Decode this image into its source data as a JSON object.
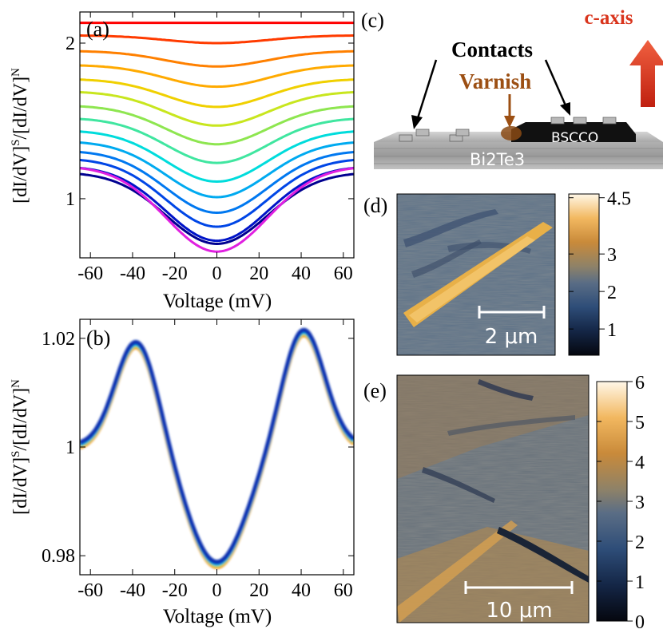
{
  "figure": {
    "panels": {
      "a": {
        "label": "(a)"
      },
      "b": {
        "label": "(b)"
      },
      "c": {
        "label": "(c)",
        "contacts": "Contacts",
        "varnish": "Varnish",
        "c_axis": "c-axis",
        "bscco": "BSCCO",
        "substrate": "Bi2Te3"
      },
      "d": {
        "label": "(d)",
        "scalebar": "2 μm"
      },
      "e": {
        "label": "(e)",
        "scalebar": "10 μm"
      }
    },
    "colors": {
      "arrow_red": "#d9341c",
      "varnish_brown": "#9c4f13",
      "contacts_black": "#000000"
    }
  },
  "chart_data": [
    {
      "panel": "a",
      "type": "line",
      "xlabel": "Voltage (mV)",
      "ylabel": "[dI/dV]S/[dI/dV]N",
      "ylabel_main": "[dI/dV]",
      "ylabel_sup1": "S",
      "ylabel_mid": "/[dI/dV]",
      "ylabel_sup2": "N",
      "xlim": [
        -65,
        65
      ],
      "ylim": [
        0.62,
        2.2
      ],
      "xticks": [
        -60,
        -40,
        -20,
        0,
        20,
        40,
        60
      ],
      "xtick_labels": [
        "-60",
        "-40",
        "-20",
        "0",
        "20",
        "40",
        "60"
      ],
      "yticks": [
        1,
        2
      ],
      "ytick_labels": [
        "1",
        "2"
      ],
      "series": [
        {
          "name": "s0",
          "color": "#ff0000",
          "offset": 2.13,
          "depth": 0.0
        },
        {
          "name": "s1",
          "color": "#ff3b00",
          "offset": 2.05,
          "depth": 0.05
        },
        {
          "name": "s2",
          "color": "#ff8000",
          "offset": 1.95,
          "depth": 0.1
        },
        {
          "name": "s3",
          "color": "#ffaa00",
          "offset": 1.86,
          "depth": 0.14
        },
        {
          "name": "s4",
          "color": "#f0d000",
          "offset": 1.77,
          "depth": 0.18
        },
        {
          "name": "s5",
          "color": "#c8e61e",
          "offset": 1.69,
          "depth": 0.22
        },
        {
          "name": "s6",
          "color": "#8ee650",
          "offset": 1.6,
          "depth": 0.25
        },
        {
          "name": "s7",
          "color": "#40e6a0",
          "offset": 1.52,
          "depth": 0.29
        },
        {
          "name": "s8",
          "color": "#00dcdc",
          "offset": 1.44,
          "depth": 0.33
        },
        {
          "name": "s9",
          "color": "#00aaf0",
          "offset": 1.37,
          "depth": 0.36
        },
        {
          "name": "s10",
          "color": "#0078f0",
          "offset": 1.31,
          "depth": 0.4
        },
        {
          "name": "s11",
          "color": "#0046e6",
          "offset": 1.26,
          "depth": 0.44
        },
        {
          "name": "s12",
          "color": "#0014c8",
          "offset": 1.21,
          "depth": 0.48
        },
        {
          "name": "s13",
          "color": "#000090",
          "offset": 1.17,
          "depth": 0.46
        },
        {
          "name": "s14",
          "color": "#e020e0",
          "offset": 1.21,
          "depth": 0.55
        }
      ]
    },
    {
      "panel": "b",
      "type": "line",
      "xlabel": "Voltage (mV)",
      "ylabel": "[dI/dV]S/[dI/dV]N",
      "ylabel_main": "[dI/dV]",
      "ylabel_sup1": "S",
      "ylabel_mid": "/[dI/dV]",
      "ylabel_sup2": "N",
      "xlim": [
        -65,
        65
      ],
      "ylim": [
        0.9765,
        1.0235
      ],
      "xticks": [
        -60,
        -40,
        -20,
        0,
        20,
        40,
        60
      ],
      "xtick_labels": [
        "-60",
        "-40",
        "-20",
        "0",
        "20",
        "40",
        "60"
      ],
      "yticks": [
        0.98,
        1.0,
        1.02
      ],
      "ytick_labels": [
        "0.98",
        "1",
        "1.02"
      ],
      "series_colors": [
        "#e67800",
        "#ff9a00",
        "#f0c000",
        "#b8e040",
        "#40d8a0",
        "#00c0e0",
        "#0090f0",
        "#0050d8",
        "#1030b0"
      ]
    },
    {
      "panel": "d",
      "type": "heatmap",
      "colorbar_ticks": [
        1,
        2,
        3,
        4.5
      ],
      "colorbar_labels": [
        "1",
        "2",
        "3",
        "4.5"
      ],
      "colorbar_range": [
        0.3,
        4.6
      ]
    },
    {
      "panel": "e",
      "type": "heatmap",
      "colorbar_ticks": [
        0,
        1,
        2,
        3,
        4,
        5,
        6
      ],
      "colorbar_labels": [
        "0",
        "1",
        "2",
        "3",
        "4",
        "5",
        "6"
      ],
      "colorbar_range": [
        0,
        6
      ]
    }
  ]
}
